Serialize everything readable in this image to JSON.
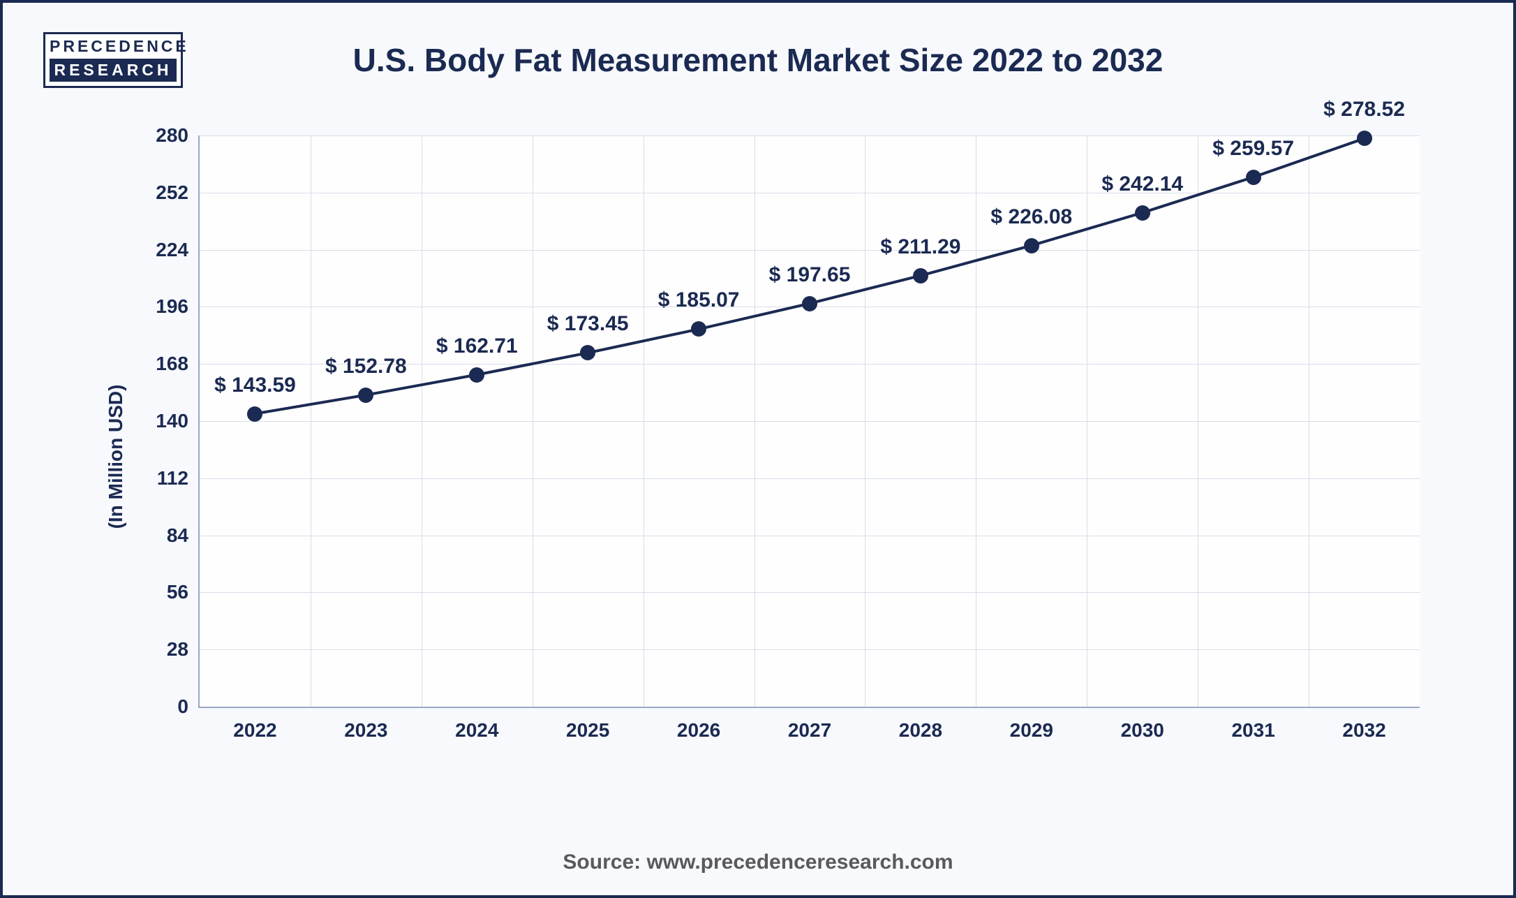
{
  "logo": {
    "top": "PRECEDENCE",
    "bottom": "RESEARCH"
  },
  "title": "U.S. Body Fat Measurement Market Size 2022 to 2032",
  "ylabel": "(In Million USD)",
  "source": "Source: www.precedenceresearch.com",
  "chart": {
    "type": "line",
    "line_color": "#1b2a52",
    "line_width": 4,
    "marker_color": "#1b2a52",
    "marker_radius": 11,
    "grid_color": "#d7dde9",
    "axis_color": "#9aa7c4",
    "background_color": "#fefefe",
    "outer_background": "#f7f9fc",
    "border_color": "#1b2a52",
    "title_fontsize": 46,
    "tick_fontsize": 28,
    "label_fontsize": 30,
    "source_fontsize": 30,
    "ylim": [
      0,
      280
    ],
    "ytick_step": 28,
    "yticks": [
      0,
      28,
      56,
      84,
      112,
      140,
      168,
      196,
      224,
      252,
      280
    ],
    "categories": [
      "2022",
      "2023",
      "2024",
      "2025",
      "2026",
      "2027",
      "2028",
      "2029",
      "2030",
      "2031",
      "2032"
    ],
    "values": [
      143.59,
      152.78,
      162.71,
      173.45,
      185.07,
      197.65,
      211.29,
      226.08,
      242.14,
      259.57,
      278.52
    ],
    "labels": [
      "$ 143.59",
      "$ 152.78",
      "$ 162.71",
      "$ 173.45",
      "$ 185.07",
      "$ 197.65",
      "$ 211.29",
      "$ 226.08",
      "$ 242.14",
      "$ 259.57",
      "$ 278.52"
    ]
  }
}
